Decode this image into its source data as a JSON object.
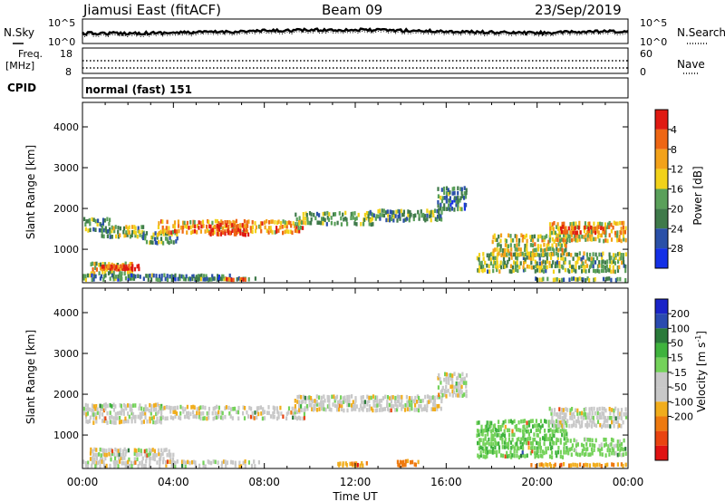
{
  "header": {
    "station": "Jiamusi East (fitACF)",
    "beam": "Beam 09",
    "date": "23/Sep/2019"
  },
  "noise_panel": {
    "left_label": "N.Sky",
    "right_label": "N.Search",
    "left_ticks": [
      "10^5",
      "10^0"
    ],
    "right_ticks": [
      "10^5",
      "10^0"
    ]
  },
  "freq_panel": {
    "left_label_1": "Freq.",
    "left_label_2": "[MHz]",
    "left_ticks": [
      "18",
      "8"
    ],
    "right_ticks": [
      "60",
      "0"
    ],
    "right_label": "Nave",
    "cpid_label": "CPID",
    "cpid_text": "normal (fast) 151"
  },
  "colors": {
    "power": [
      "#1430e6",
      "#2a50a8",
      "#3f7a4a",
      "#5aa05a",
      "#f2d21a",
      "#f3a21a",
      "#ee6614",
      "#e01a12"
    ],
    "velocity_neg": [
      "#c8c8c8",
      "#f1ad1c",
      "#ee7a10",
      "#ea4410",
      "#e01212"
    ],
    "velocity_pos": [
      "#c8c8c8",
      "#74d25a",
      "#3fb33d",
      "#2a7a3a",
      "#2a4bb0",
      "#1a24c8"
    ]
  },
  "chart_data": [
    {
      "type": "heatmap",
      "title": "Power",
      "ylabel": "Slant Range [km]",
      "xlabel": "Time UT",
      "y_ticks": [
        1000,
        2000,
        3000,
        4000
      ],
      "ylim": [
        180,
        4600
      ],
      "x_ticks": [
        "00:00",
        "04:00",
        "08:00",
        "12:00",
        "16:00",
        "20:00",
        "00:00"
      ],
      "xlim_hours": [
        0,
        24
      ],
      "colorbar": {
        "label": "Power [dB]",
        "ticks": [
          "4",
          "8",
          "12",
          "16",
          "20",
          "24",
          "28"
        ],
        "range": [
          0,
          32
        ]
      },
      "echo_bands": [
        {
          "t0": 0.0,
          "t1": 1.2,
          "r0": 1500,
          "r1": 1850,
          "level": 0.35
        },
        {
          "t0": 0.8,
          "t1": 2.8,
          "r0": 1350,
          "r1": 1650,
          "level": 0.45
        },
        {
          "t0": 2.6,
          "t1": 4.2,
          "r0": 1200,
          "r1": 1500,
          "level": 0.4
        },
        {
          "t0": 3.3,
          "t1": 9.8,
          "r0": 1450,
          "r1": 1800,
          "level": 0.7
        },
        {
          "t0": 5.5,
          "t1": 7.3,
          "r0": 1400,
          "r1": 1700,
          "level": 0.9
        },
        {
          "t0": 9.3,
          "t1": 12.8,
          "r0": 1650,
          "r1": 2000,
          "level": 0.4
        },
        {
          "t0": 12.5,
          "t1": 15.8,
          "r0": 1750,
          "r1": 2050,
          "level": 0.35
        },
        {
          "t0": 15.6,
          "t1": 16.9,
          "r0": 2000,
          "r1": 2600,
          "level": 0.3
        },
        {
          "t0": 0.3,
          "t1": 2.2,
          "r0": 450,
          "r1": 750,
          "level": 0.55
        },
        {
          "t0": 0.8,
          "t1": 2.5,
          "r0": 550,
          "r1": 680,
          "level": 0.95
        },
        {
          "t0": 0.0,
          "t1": 6.5,
          "r0": 300,
          "r1": 450,
          "level": 0.3
        },
        {
          "t0": 4.7,
          "t1": 7.8,
          "r0": 250,
          "r1": 360,
          "level": 0.3
        },
        {
          "t0": 6.0,
          "t1": 7.2,
          "r0": 260,
          "r1": 340,
          "level": 0.85
        },
        {
          "t0": 17.3,
          "t1": 24.0,
          "r0": 500,
          "r1": 1000,
          "level": 0.45
        },
        {
          "t0": 18.0,
          "t1": 21.3,
          "r0": 900,
          "r1": 1450,
          "level": 0.55
        },
        {
          "t0": 20.5,
          "t1": 24.0,
          "r0": 1250,
          "r1": 1750,
          "level": 0.6
        },
        {
          "t0": 21.0,
          "t1": 23.0,
          "r0": 1450,
          "r1": 1650,
          "level": 0.85
        },
        {
          "t0": 19.6,
          "t1": 24.0,
          "r0": 200,
          "r1": 380,
          "level": 0.35
        }
      ]
    },
    {
      "type": "heatmap",
      "title": "Velocity",
      "ylabel": "Slant Range [km]",
      "xlabel": "Time UT",
      "y_ticks": [
        1000,
        2000,
        3000,
        4000
      ],
      "ylim": [
        180,
        4600
      ],
      "x_ticks": [
        "00:00",
        "04:00",
        "08:00",
        "12:00",
        "16:00",
        "20:00",
        "00:00"
      ],
      "xlim_hours": [
        0,
        24
      ],
      "colorbar": {
        "label_main": "Velocity [m s",
        "label_sup": "-1",
        "label_end": "]",
        "ticks": [
          "200",
          "100",
          "50",
          "15",
          "-15",
          "-50",
          "-100",
          "-200"
        ],
        "range": [
          -250,
          250
        ]
      },
      "echo_bands": [
        {
          "t0": 0.0,
          "t1": 3.5,
          "r0": 1350,
          "r1": 1850,
          "vel": 0
        },
        {
          "t0": 3.3,
          "t1": 9.8,
          "r0": 1450,
          "r1": 1800,
          "vel": 0
        },
        {
          "t0": 9.3,
          "t1": 15.8,
          "r0": 1650,
          "r1": 2050,
          "vel": 0
        },
        {
          "t0": 15.6,
          "t1": 16.9,
          "r0": 2000,
          "r1": 2600,
          "vel": 0
        },
        {
          "t0": 0.3,
          "t1": 4.0,
          "r0": 450,
          "r1": 750,
          "vel": 0
        },
        {
          "t0": 0.0,
          "t1": 7.8,
          "r0": 260,
          "r1": 450,
          "vel": 0
        },
        {
          "t0": 13.8,
          "t1": 14.8,
          "r0": 300,
          "r1": 450,
          "vel": -60
        },
        {
          "t0": 11.2,
          "t1": 12.5,
          "r0": 300,
          "r1": 380,
          "vel": -40
        },
        {
          "t0": 17.3,
          "t1": 21.3,
          "r0": 500,
          "r1": 1450,
          "vel": 40
        },
        {
          "t0": 20.5,
          "t1": 24.0,
          "r0": 1250,
          "r1": 1750,
          "vel": 0
        },
        {
          "t0": 21.3,
          "t1": 24.0,
          "r0": 550,
          "r1": 1000,
          "vel": 30
        },
        {
          "t0": 19.6,
          "t1": 24.0,
          "r0": 200,
          "r1": 380,
          "vel": -45
        },
        {
          "t0": 0.0,
          "t1": 3.5,
          "r0": 190,
          "r1": 320,
          "vel": 30
        }
      ]
    }
  ]
}
